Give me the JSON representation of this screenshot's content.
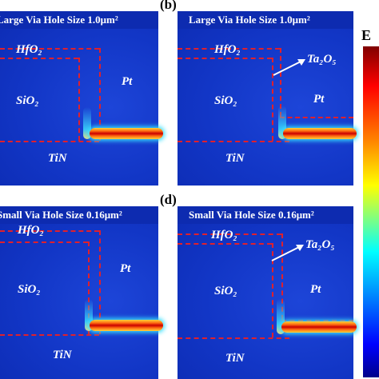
{
  "panels": [
    {
      "letter": "",
      "title": "Large Via Hole Size 1.0μm²",
      "hfo2": "HfO₂",
      "sio2": "SiO₂",
      "pt": "Pt",
      "tin": "TiN",
      "ta2o5": ""
    },
    {
      "letter": "(b)",
      "title": "Large Via Hole Size 1.0μm²",
      "hfo2": "HfO₂",
      "sio2": "SiO₂",
      "pt": "Pt",
      "tin": "TiN",
      "ta2o5": "Ta₂O₅"
    },
    {
      "letter": "",
      "title": "Small Via Hole Size 0.16μm²",
      "hfo2": "HfO₂",
      "sio2": "SiO₂",
      "pt": "Pt",
      "tin": "TiN",
      "ta2o5": ""
    },
    {
      "letter": "(d)",
      "title": "Small Via Hole Size 0.16μm²",
      "hfo2": "HfO₂",
      "sio2": "SiO₂",
      "pt": "Pt",
      "tin": "TiN",
      "ta2o5": "Ta₂O₅"
    }
  ],
  "colorbar": {
    "title": "E",
    "top_label": "",
    "bottom_label": "",
    "colors": [
      "#800000",
      "#ff0000",
      "#ff8000",
      "#ffff00",
      "#00ffff",
      "#0080ff",
      "#0000ff",
      "#00008a"
    ]
  },
  "colors": {
    "background": "#1034c8",
    "dashed_outline": "#e0202c",
    "filament_core": "#c90000"
  }
}
